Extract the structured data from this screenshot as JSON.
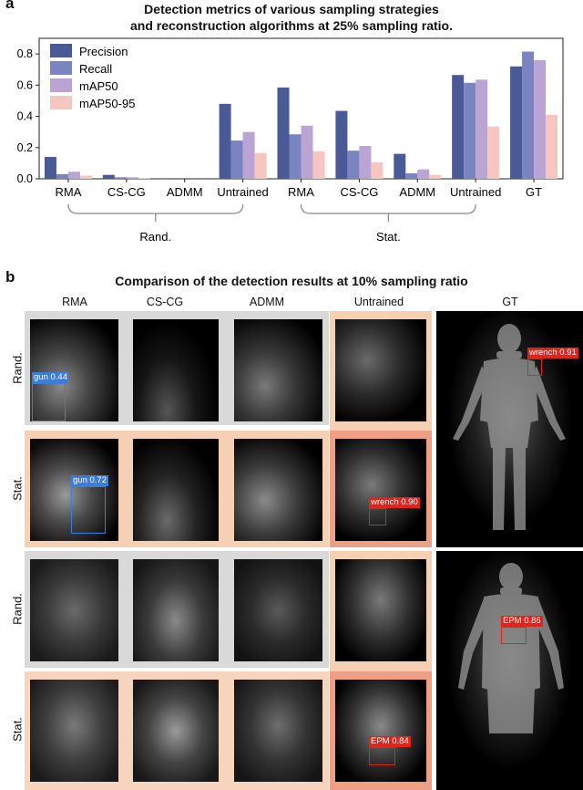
{
  "panel_a": {
    "letter": "a",
    "title_line1": "Detection metrics of various sampling strategies",
    "title_line2": "and reconstruction algorithms at 25% sampling ratio."
  },
  "panel_b": {
    "letter": "b",
    "title": "Comparison of the detection results at 10% sampling ratio",
    "columns": [
      "RMA",
      "CS-CG",
      "ADMM",
      "Untrained",
      "GT"
    ],
    "row_labels": [
      "Rand.",
      "Stat.",
      "Rand.",
      "Stat."
    ],
    "detections": [
      {
        "label": "gun 0.44"
      },
      {
        "label": "wrench 0.91"
      },
      {
        "label": "gun 0.72"
      },
      {
        "label": "wrench 0.90"
      },
      {
        "label": "EPM 0.86"
      },
      {
        "label": "EPM 0.84"
      }
    ],
    "colors": {
      "box_gray": "#d9d9d9",
      "box_peach": "#f7cfb3",
      "box_salmon": "#ef9f85",
      "detect_blue": "#3b7dd8",
      "detect_red": "#e0241b"
    }
  },
  "chart_data": {
    "type": "bar",
    "categories": [
      "RMA",
      "CS-CG",
      "ADMM",
      "Untrained",
      "RMA",
      "CS-CG",
      "ADMM",
      "Untrained",
      "GT"
    ],
    "groups": [
      {
        "label": "Rand.",
        "range": [
          0,
          3
        ]
      },
      {
        "label": "Stat.",
        "range": [
          4,
          7
        ]
      }
    ],
    "series": [
      {
        "name": "Precision",
        "color": "#4a5a96",
        "values": [
          0.14,
          0.025,
          0.0,
          0.48,
          0.585,
          0.435,
          0.16,
          0.665,
          0.72
        ]
      },
      {
        "name": "Recall",
        "color": "#7a84c0",
        "values": [
          0.03,
          0.01,
          0.0,
          0.245,
          0.285,
          0.18,
          0.035,
          0.615,
          0.815
        ]
      },
      {
        "name": "mAP50",
        "color": "#b9a4d4",
        "values": [
          0.045,
          0.01,
          0.0,
          0.3,
          0.34,
          0.21,
          0.06,
          0.635,
          0.76
        ]
      },
      {
        "name": "mAP50-95",
        "color": "#f6c6c1",
        "values": [
          0.02,
          0.005,
          0.0,
          0.165,
          0.175,
          0.105,
          0.025,
          0.335,
          0.41
        ]
      }
    ],
    "yticks": [
      0.0,
      0.2,
      0.4,
      0.6,
      0.8
    ],
    "ylim": [
      0,
      0.9
    ],
    "legend": "top-left",
    "grid": false
  }
}
